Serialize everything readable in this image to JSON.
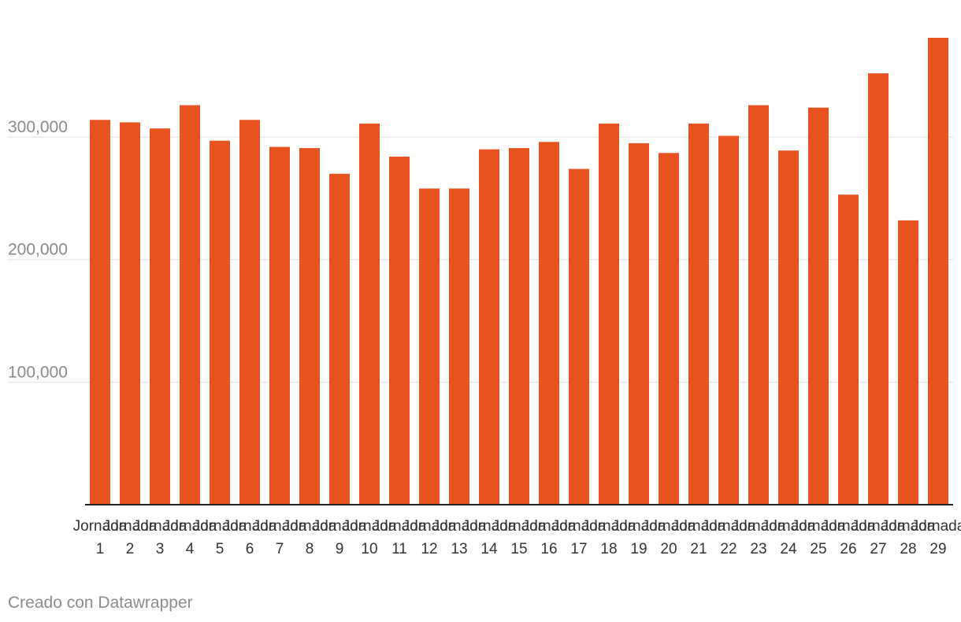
{
  "chart_data": {
    "type": "bar",
    "categories": [
      "Jornada 1",
      "Jornada 2",
      "Jornada 3",
      "Jornada 4",
      "Jornada 5",
      "Jornada 6",
      "Jornada 7",
      "Jornada 8",
      "Jornada 9",
      "Jornada 10",
      "Jornada 11",
      "Jornada 12",
      "Jornada 13",
      "Jornada 14",
      "Jornada 15",
      "Jornada 16",
      "Jornada 17",
      "Jornada 18",
      "Jornada 19",
      "Jornada 20",
      "Jornada 21",
      "Jornada 22",
      "Jornada 23",
      "Jornada 24",
      "Jornada 25",
      "Jornada 26",
      "Jornada 27",
      "Jornada 28",
      "Jornada 29"
    ],
    "values": [
      314000,
      312000,
      307000,
      326000,
      297000,
      314000,
      292000,
      291000,
      270000,
      311000,
      284000,
      258000,
      258000,
      290000,
      291000,
      296000,
      274000,
      311000,
      295000,
      287000,
      311000,
      301000,
      326000,
      289000,
      324000,
      253000,
      352000,
      232000,
      381000
    ],
    "ylim": [
      0,
      381000
    ],
    "yticks": [
      100000,
      200000,
      300000
    ],
    "ytick_labels": [
      "100,000",
      "200,000",
      "300,000"
    ],
    "grid": true,
    "bar_color": "#e8521f",
    "title": "",
    "xlabel": "",
    "ylabel": ""
  },
  "footer": {
    "credit": "Creado con Datawrapper"
  }
}
